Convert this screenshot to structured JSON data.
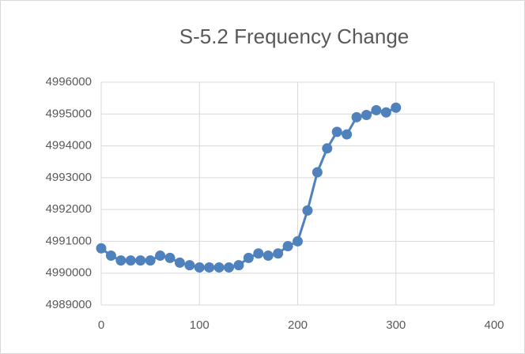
{
  "chart_data": {
    "type": "line",
    "title": "S-5.2 Frequency Change",
    "x": [
      0,
      10,
      20,
      30,
      40,
      50,
      60,
      70,
      80,
      90,
      100,
      110,
      120,
      130,
      140,
      150,
      160,
      170,
      180,
      190,
      200,
      210,
      220,
      230,
      240,
      250,
      260,
      270,
      280,
      290,
      300
    ],
    "values": [
      4990780,
      4990550,
      4990400,
      4990400,
      4990400,
      4990400,
      4990550,
      4990480,
      4990330,
      4990250,
      4990180,
      4990180,
      4990180,
      4990180,
      4990250,
      4990480,
      4990620,
      4990550,
      4990620,
      4990850,
      4991000,
      4991970,
      4993170,
      4993920,
      4994440,
      4994360,
      4994900,
      4994970,
      4995120,
      4995050,
      4995200
    ],
    "color": "#4f81bd",
    "xlim": [
      0,
      400
    ],
    "xticks": [
      0,
      100,
      200,
      300,
      400
    ],
    "ylim": [
      4989000,
      4996000
    ],
    "yticks": [
      4989000,
      4990000,
      4991000,
      4992000,
      4993000,
      4994000,
      4995000,
      4996000
    ],
    "grid": true
  }
}
